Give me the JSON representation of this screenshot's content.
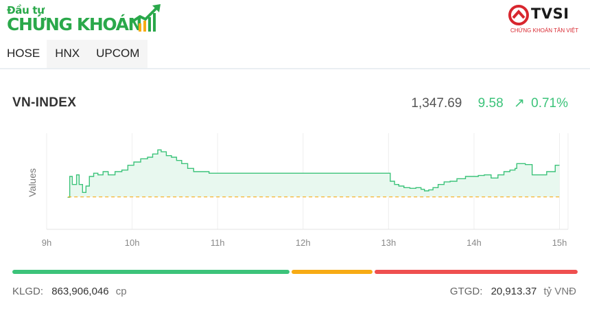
{
  "logo": {
    "line1": "Đầu tư",
    "line2": "CHỨNG KHOÁN"
  },
  "partner": {
    "name": "TVSI",
    "tagline": "CHỨNG KHOÁN TÂN VIỆT"
  },
  "tabs": [
    {
      "label": "HOSE",
      "active": true
    },
    {
      "label": "HNX",
      "active": false
    },
    {
      "label": "UPCOM",
      "active": false
    }
  ],
  "index": {
    "name": "VN-INDEX",
    "price": "1,347.69",
    "change": "9.58",
    "arrow": "↗",
    "percent": "0.71%"
  },
  "breadth": {
    "colors": {
      "up": "#3cc37a",
      "flat": "#f7ab14",
      "down": "#ef4f4f"
    }
  },
  "footer": {
    "volume_label": "KLGD:",
    "volume_value": "863,906,046",
    "volume_unit": "cp",
    "value_label": "GTGD:",
    "value_value": "20,913.37",
    "value_unit": "tỷ VNĐ"
  },
  "chart_data": {
    "type": "area",
    "ylabel": "Values",
    "xlabel": "",
    "x_ticks": [
      "9h",
      "10h",
      "11h",
      "12h",
      "13h",
      "14h",
      "15h"
    ],
    "x_range": [
      9,
      15.1
    ],
    "ylim": [
      1328,
      1358
    ],
    "reference": 1338.11,
    "line_color": "#3cc37a",
    "fill_color": "#e8f8ef",
    "reference_color": "#f7ab14",
    "grid": true,
    "series": [
      {
        "x": [
          9.25,
          9.27,
          9.3,
          9.35,
          9.38,
          9.42,
          9.46,
          9.5,
          9.55,
          9.6,
          9.66,
          9.72,
          9.8,
          9.88,
          9.95,
          10.02,
          10.1,
          10.18,
          10.24,
          10.3,
          10.34,
          10.4,
          10.46,
          10.52,
          10.58,
          10.65,
          10.72,
          10.8,
          10.9,
          11,
          11.1,
          11.2,
          11.35,
          11.5,
          11.7,
          11.9,
          12.1,
          12.3,
          12.5,
          12.7,
          12.98,
          13.02,
          13.07,
          13.12,
          13.18,
          13.25,
          13.32,
          13.38,
          13.42,
          13.47,
          13.52,
          13.58,
          13.65,
          13.72,
          13.8,
          13.9,
          13.98,
          14.05,
          14.12,
          14.2,
          14.28,
          14.35,
          14.42,
          14.48,
          14.5,
          14.52,
          14.6,
          14.68,
          14.75,
          14.85,
          14.95,
          15
        ],
        "y": [
          1338,
          1344.5,
          1342,
          1345,
          1342,
          1339.5,
          1341.5,
          1344.5,
          1345.5,
          1345,
          1346,
          1345,
          1346,
          1346.5,
          1348,
          1349,
          1350,
          1350.5,
          1351.5,
          1352.8,
          1352.2,
          1351,
          1350.5,
          1349.5,
          1348.5,
          1347,
          1346,
          1346,
          1345.5,
          1345.5,
          1345.5,
          1345.5,
          1345.5,
          1345.5,
          1345.5,
          1345.5,
          1345.5,
          1345.5,
          1345.5,
          1345.5,
          1345.5,
          1343,
          1342,
          1341.5,
          1341,
          1340.8,
          1341,
          1340.5,
          1340,
          1340.3,
          1341,
          1342,
          1342.8,
          1343,
          1343.8,
          1344.5,
          1344.5,
          1344.8,
          1345,
          1344,
          1345,
          1346,
          1346.5,
          1347,
          1348.5,
          1348.5,
          1348.2,
          1345,
          1345,
          1346,
          1348,
          1348
        ]
      }
    ]
  }
}
